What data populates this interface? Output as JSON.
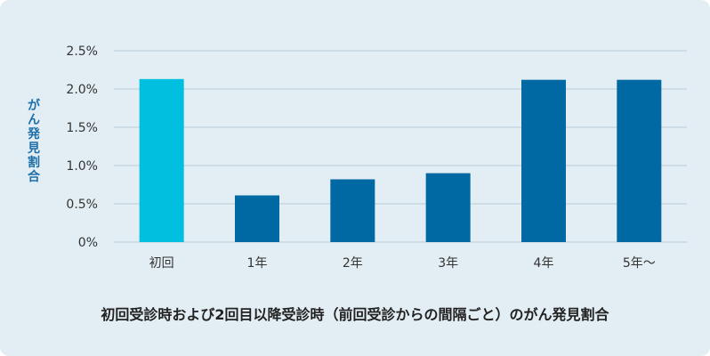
{
  "colors": {
    "background": "#e3eef4",
    "grid": "#b9cbd6",
    "first_bar": "#00bfdf",
    "other_bars": "#0068a3",
    "ylabel": "#1e6fa8",
    "text": "#333333"
  },
  "caption": "初回受診時および2回目以降受診時（前回受診からの間隔ごと）のがん発見割合",
  "chart_data": {
    "type": "bar",
    "title": "",
    "xlabel": "",
    "ylabel": "がん発見割合",
    "categories": [
      "初回",
      "1年",
      "2年",
      "3年",
      "4年",
      "5年〜"
    ],
    "values": [
      2.13,
      0.61,
      0.82,
      0.9,
      2.12,
      2.12
    ],
    "value_unit": "%",
    "ylim": [
      0,
      2.5
    ],
    "yticks": [
      0,
      0.5,
      1.0,
      1.5,
      2.0,
      2.5
    ],
    "ytick_labels": [
      "0%",
      "0.5%",
      "1.0%",
      "1.5%",
      "2.0%",
      "2.5%"
    ],
    "grid": true,
    "legend": "none"
  }
}
